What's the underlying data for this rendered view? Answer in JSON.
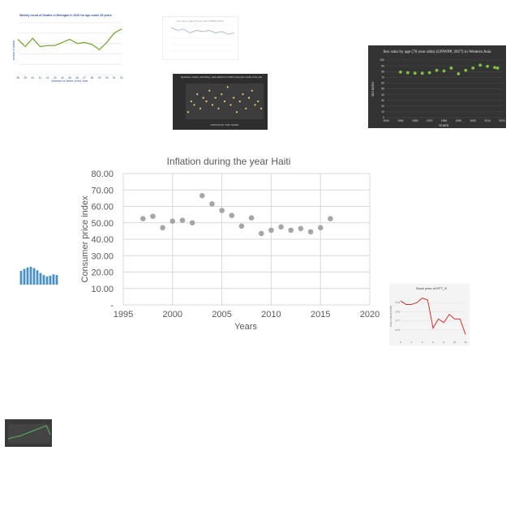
{
  "chart_data": [
    {
      "type": "scatter",
      "title": "Inflation during the year Haiti",
      "xlabel": "Years",
      "ylabel": "Consumer price index",
      "xlim": [
        1995,
        2020
      ],
      "ylim": [
        0,
        80
      ],
      "x_ticks": [
        "1995",
        "2000",
        "2005",
        "2010",
        "2015",
        "2020"
      ],
      "y_ticks": [
        "-",
        "10.00",
        "20.00",
        "30.00",
        "40.00",
        "50.00",
        "60.00",
        "70.00",
        "80.00"
      ],
      "grid": true,
      "marker_color": "#a6a6a6",
      "points": [
        {
          "x": 1997,
          "y": 52.5
        },
        {
          "x": 1998,
          "y": 54.0
        },
        {
          "x": 1999,
          "y": 47.0
        },
        {
          "x": 2000,
          "y": 51.0
        },
        {
          "x": 2001,
          "y": 51.5
        },
        {
          "x": 2002,
          "y": 50.0
        },
        {
          "x": 2003,
          "y": 66.5
        },
        {
          "x": 2004,
          "y": 61.5
        },
        {
          "x": 2005,
          "y": 57.5
        },
        {
          "x": 2006,
          "y": 54.5
        },
        {
          "x": 2007,
          "y": 48.0
        },
        {
          "x": 2008,
          "y": 53.0
        },
        {
          "x": 2009,
          "y": 43.5
        },
        {
          "x": 2010,
          "y": 45.5
        },
        {
          "x": 2011,
          "y": 47.5
        },
        {
          "x": 2012,
          "y": 45.5
        },
        {
          "x": 2013,
          "y": 46.5
        },
        {
          "x": 2014,
          "y": 44.5
        },
        {
          "x": 2015,
          "y": 47.0
        },
        {
          "x": 2016,
          "y": 52.5
        }
      ]
    },
    {
      "type": "line",
      "title": "Weekly count of Deaths in Michigan in 2020 for age under 25 years",
      "xlabel": "Number of Week of the Year",
      "ylabel": "number of deaths",
      "categories": [
        "38",
        "39",
        "40",
        "41",
        "42",
        "43",
        "44",
        "45",
        "46",
        "47",
        "48",
        "49",
        "50",
        "51",
        "52"
      ],
      "values": [
        34,
        27,
        35,
        27,
        28,
        28,
        31,
        34,
        30,
        31,
        29,
        24,
        31,
        40,
        44
      ],
      "line_color": "#7aa83a"
    },
    {
      "type": "line",
      "title": "Sex ratio by age (75 year olds) (UNWPP, 2017)",
      "values": [
        9,
        8,
        8.5,
        7,
        8,
        7.5,
        8,
        7,
        7.5,
        6.5,
        7
      ],
      "line_color": "#aab7d8"
    },
    {
      "type": "scatter",
      "title": "Agriculture, forestry, and fishing, value added (% of GDP) during the months of the year",
      "xlabel": "INDICATOR: THE YEARS",
      "values": [
        2,
        5,
        4,
        7,
        3,
        6,
        5,
        8,
        4,
        6,
        3,
        7,
        5,
        9,
        4,
        6,
        2,
        5,
        7,
        3,
        6,
        8,
        4,
        5,
        3
      ],
      "marker_color": "#e6cf7a"
    },
    {
      "type": "scatter",
      "title": "Sex ratio by age (70 year olds) (UNWPP, 2017) in Western Asia",
      "xlabel": "YEARS",
      "ylabel": "SEX RATIO",
      "x_ticks": [
        "1940",
        "1950",
        "1960",
        "1970",
        "1980",
        "1990",
        "2000",
        "2010",
        "2020"
      ],
      "y_ticks": [
        "0",
        "10",
        "20",
        "30",
        "40",
        "50",
        "60",
        "70",
        "80",
        "90",
        "100"
      ],
      "xlim": [
        1940,
        2020
      ],
      "ylim": [
        0,
        100
      ],
      "points": [
        {
          "x": 1950,
          "y": 79
        },
        {
          "x": 1955,
          "y": 78
        },
        {
          "x": 1960,
          "y": 77
        },
        {
          "x": 1965,
          "y": 77
        },
        {
          "x": 1970,
          "y": 78
        },
        {
          "x": 1975,
          "y": 82
        },
        {
          "x": 1980,
          "y": 81
        },
        {
          "x": 1985,
          "y": 86
        },
        {
          "x": 1990,
          "y": 76
        },
        {
          "x": 1995,
          "y": 82
        },
        {
          "x": 2000,
          "y": 86
        },
        {
          "x": 2005,
          "y": 91
        },
        {
          "x": 2010,
          "y": 89
        },
        {
          "x": 2015,
          "y": 87
        },
        {
          "x": 2017,
          "y": 86
        }
      ],
      "marker_color": "#7dc242"
    },
    {
      "type": "bar",
      "values": [
        20,
        23,
        25,
        26,
        24,
        21,
        17,
        14,
        12,
        13,
        15,
        14
      ],
      "bar_color": "#4a90c2"
    },
    {
      "type": "line",
      "title": "Stock price of EFT_G",
      "ylabel": "Price of Stock (USD)",
      "x_ticks": [
        "0",
        "2",
        "4",
        "6",
        "8",
        "10",
        "12"
      ],
      "y_ticks": [
        "27.6",
        "27.7",
        "27.8",
        "27.9"
      ],
      "x": [
        0,
        1,
        2,
        3,
        4,
        5,
        6,
        7,
        8,
        9,
        10,
        11,
        12
      ],
      "values": [
        27.92,
        27.88,
        27.88,
        27.9,
        27.95,
        27.93,
        27.62,
        27.72,
        27.68,
        27.77,
        27.72,
        27.72,
        27.55
      ],
      "line_color": "#d0312d"
    },
    {
      "type": "line",
      "values": [
        3,
        4,
        4.5,
        5,
        6,
        7,
        8,
        9,
        10,
        11,
        12,
        6
      ],
      "line_color": "#5cb85c"
    }
  ]
}
